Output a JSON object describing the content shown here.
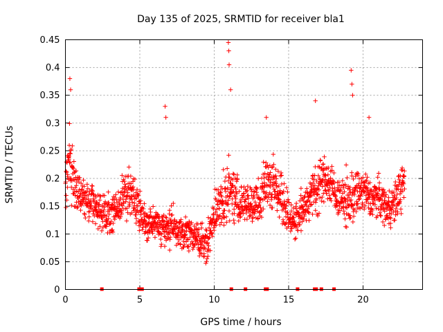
{
  "chart_data": {
    "type": "scatter",
    "title": "Day 135 of 2025, SRMTID for receiver bla1",
    "xlabel": "GPS time / hours",
    "ylabel": "SRMTID / TECUs",
    "xlim": [
      0,
      24
    ],
    "ylim": [
      0,
      0.45
    ],
    "xticks": [
      "0",
      "5",
      "10",
      "15",
      "20"
    ],
    "yticks": [
      "0",
      "0.05",
      "0.1",
      "0.15",
      "0.2",
      "0.25",
      "0.3",
      "0.35",
      "0.4",
      "0.45"
    ],
    "grid": true,
    "marker": "plus",
    "color": "#ff0000",
    "envelope": {
      "x": [
        0,
        0.3,
        0.5,
        1,
        1.5,
        2,
        2.5,
        3,
        3.5,
        4,
        4.5,
        5,
        5.5,
        6,
        6.5,
        7,
        7.5,
        8,
        8.5,
        9,
        9.5,
        10,
        10.5,
        11,
        11.5,
        12,
        12.5,
        13,
        13.5,
        14,
        14.5,
        15,
        15.5,
        16,
        16.5,
        17,
        17.5,
        18,
        18.5,
        19,
        19.5,
        20,
        20.5,
        21,
        21.5,
        22,
        22.5,
        22.8
      ],
      "center": [
        0.18,
        0.24,
        0.2,
        0.17,
        0.16,
        0.15,
        0.14,
        0.13,
        0.14,
        0.18,
        0.17,
        0.14,
        0.12,
        0.12,
        0.11,
        0.12,
        0.1,
        0.1,
        0.1,
        0.09,
        0.08,
        0.14,
        0.15,
        0.18,
        0.16,
        0.15,
        0.16,
        0.15,
        0.2,
        0.19,
        0.17,
        0.13,
        0.12,
        0.15,
        0.17,
        0.19,
        0.2,
        0.18,
        0.16,
        0.16,
        0.17,
        0.18,
        0.16,
        0.17,
        0.15,
        0.15,
        0.18,
        0.19
      ],
      "spread": [
        0.06,
        0.1,
        0.07,
        0.05,
        0.05,
        0.05,
        0.05,
        0.05,
        0.05,
        0.06,
        0.05,
        0.05,
        0.04,
        0.04,
        0.04,
        0.06,
        0.04,
        0.04,
        0.04,
        0.04,
        0.05,
        0.06,
        0.07,
        0.1,
        0.06,
        0.05,
        0.05,
        0.06,
        0.07,
        0.06,
        0.06,
        0.05,
        0.05,
        0.05,
        0.06,
        0.07,
        0.06,
        0.05,
        0.05,
        0.08,
        0.06,
        0.06,
        0.05,
        0.05,
        0.05,
        0.05,
        0.06,
        0.05
      ]
    },
    "point_count": 1800,
    "spikes": [
      {
        "x": 0.3,
        "y": 0.38
      },
      {
        "x": 0.35,
        "y": 0.36
      },
      {
        "x": 6.7,
        "y": 0.33
      },
      {
        "x": 6.75,
        "y": 0.31
      },
      {
        "x": 10.95,
        "y": 0.445
      },
      {
        "x": 10.98,
        "y": 0.43
      },
      {
        "x": 11.0,
        "y": 0.405
      },
      {
        "x": 11.1,
        "y": 0.36
      },
      {
        "x": 13.5,
        "y": 0.31
      },
      {
        "x": 16.8,
        "y": 0.34
      },
      {
        "x": 19.2,
        "y": 0.395
      },
      {
        "x": 19.25,
        "y": 0.37
      },
      {
        "x": 19.3,
        "y": 0.35
      },
      {
        "x": 20.4,
        "y": 0.31
      }
    ],
    "zero_points_x": [
      2.45,
      4.95,
      5.05,
      5.15,
      11.15,
      12.1,
      13.45,
      13.55,
      15.6,
      16.75,
      16.85,
      17.2,
      18.05
    ]
  }
}
